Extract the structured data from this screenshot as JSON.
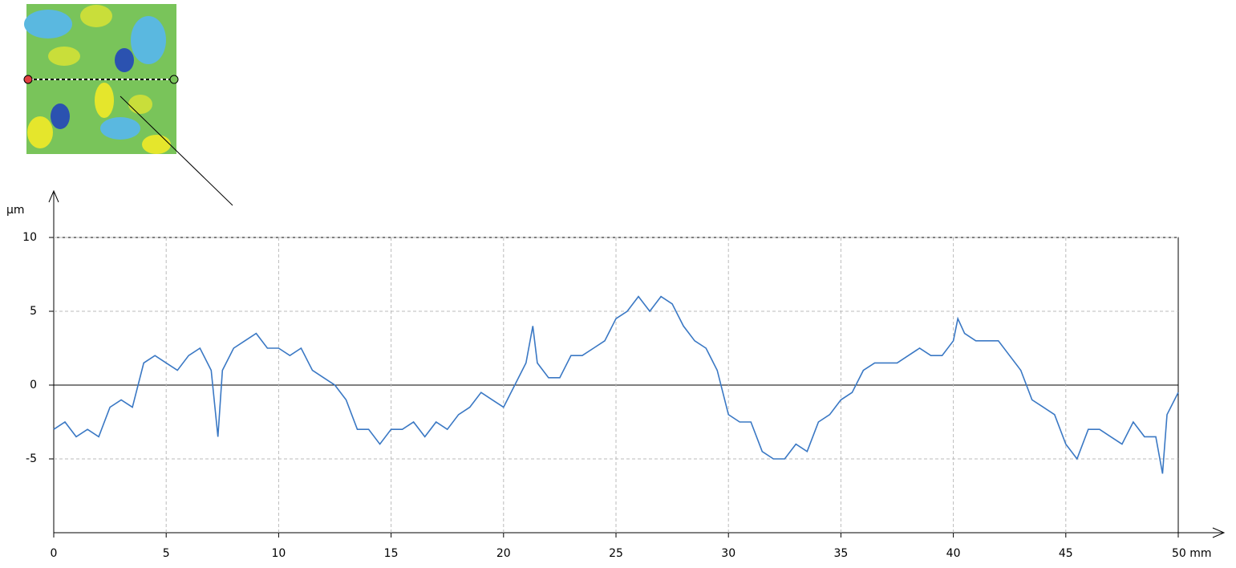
{
  "chart_data": {
    "type": "line",
    "y_label": "µm",
    "color": "#3a78c4",
    "xlim": [
      0,
      50
    ],
    "ylim": [
      -10,
      10
    ],
    "xticks": [
      0,
      5,
      10,
      15,
      20,
      25,
      30,
      35,
      40,
      45,
      {
        "value": 50,
        "label": "50 mm"
      }
    ],
    "yticks": [
      10,
      5,
      0,
      -5
    ],
    "grid": true,
    "x": [
      0,
      0.5,
      1,
      1.5,
      2,
      2.5,
      3,
      3.5,
      4,
      4.5,
      5,
      5.5,
      6,
      6.5,
      7,
      7.3,
      7.5,
      8,
      8.5,
      9,
      9.5,
      10,
      10.5,
      11,
      11.5,
      12,
      12.5,
      13,
      13.5,
      14,
      14.5,
      15,
      15.5,
      16,
      16.5,
      17,
      17.5,
      18,
      18.5,
      19,
      19.5,
      20,
      20.5,
      21,
      21.3,
      21.5,
      22,
      22.5,
      23,
      23.5,
      24,
      24.5,
      25,
      25.5,
      26,
      26.5,
      27,
      27.5,
      28,
      28.5,
      29,
      29.5,
      30,
      30.5,
      31,
      31.5,
      32,
      32.5,
      33,
      33.5,
      34,
      34.5,
      35,
      35.5,
      36,
      36.5,
      37,
      37.5,
      38,
      38.5,
      39,
      39.5,
      40,
      40.2,
      40.5,
      41,
      41.5,
      42,
      42.5,
      43,
      43.5,
      44,
      44.5,
      45,
      45.5,
      46,
      46.5,
      47,
      47.5,
      48,
      48.5,
      49,
      49.3,
      49.5,
      50
    ],
    "values": [
      -3,
      -2.5,
      -3.5,
      -3,
      -3.5,
      -1.5,
      -1,
      -1.5,
      1.5,
      2,
      1.5,
      1,
      2,
      2.5,
      1,
      -3.5,
      1,
      2.5,
      3,
      3.5,
      2.5,
      2.5,
      2,
      2.5,
      1,
      0.5,
      0,
      -1,
      -3,
      -3,
      -4,
      -3,
      -3,
      -2.5,
      -3.5,
      -2.5,
      -3,
      -2,
      -1.5,
      -0.5,
      -1,
      -1.5,
      0,
      1.5,
      4,
      1.5,
      0.5,
      0.5,
      2,
      2,
      2.5,
      3,
      4.5,
      5,
      6,
      5,
      6,
      5.5,
      4,
      3,
      2.5,
      1,
      -2,
      -2.5,
      -2.5,
      -4.5,
      -5,
      -5,
      -4,
      -4.5,
      -2.5,
      -2,
      -1,
      -0.5,
      1,
      1.5,
      1.5,
      1.5,
      2,
      2.5,
      2,
      2,
      3,
      4.5,
      3.5,
      3,
      3,
      3,
      2,
      1,
      -1,
      -1.5,
      -2,
      -4,
      -5,
      -3,
      -3,
      -3.5,
      -4,
      -2.5,
      -3.5,
      -3.5,
      -6,
      -2,
      -0.5
    ]
  }
}
